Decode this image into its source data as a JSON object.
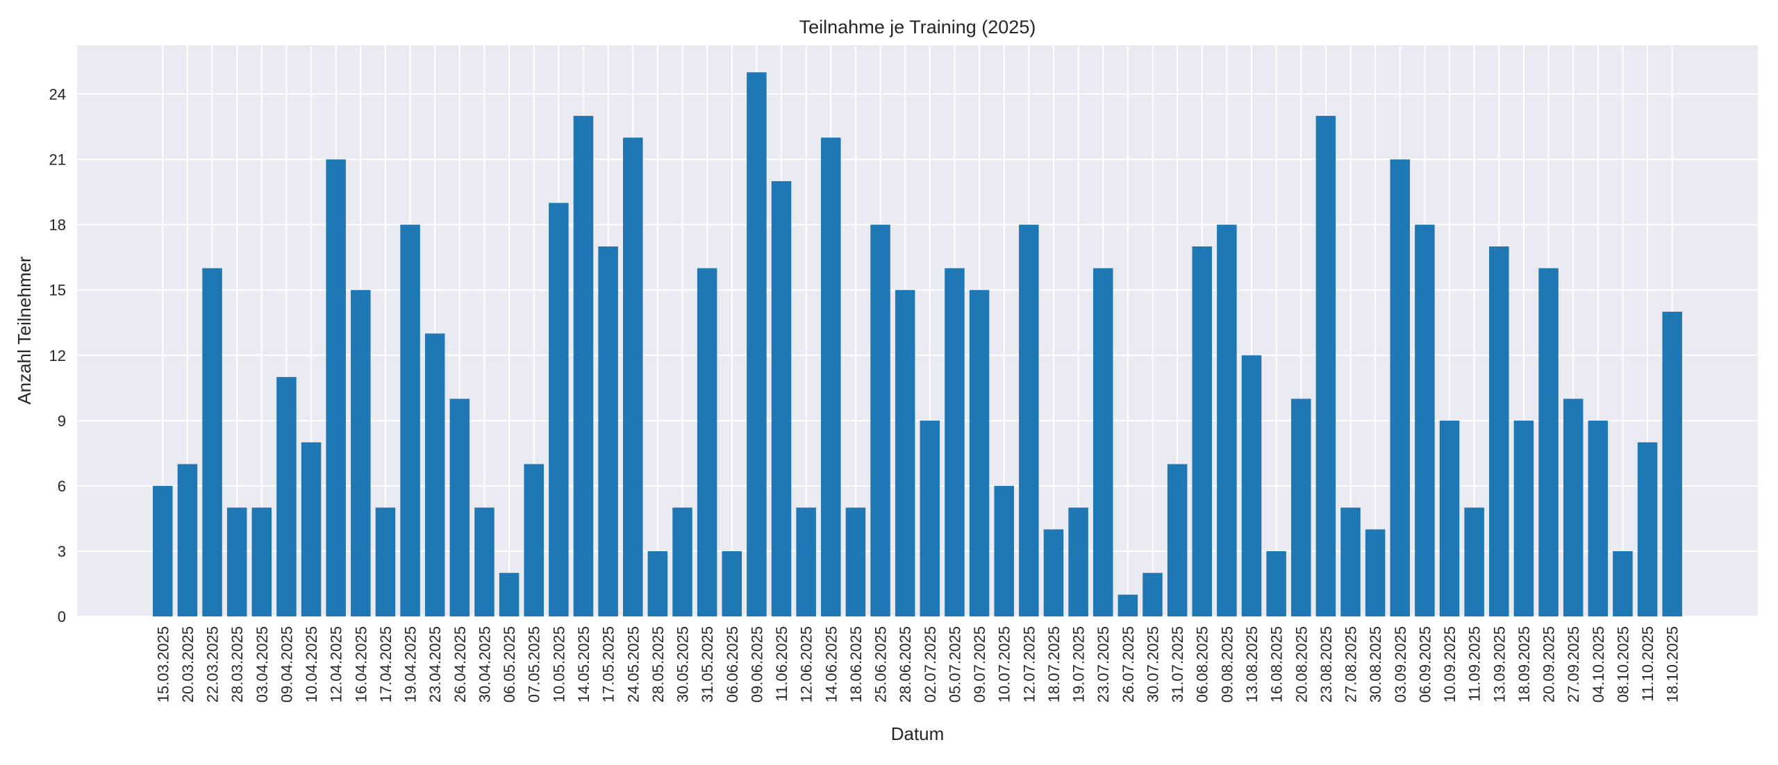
{
  "chart_data": {
    "type": "bar",
    "title": "Teilnahme je Training (2025)",
    "xlabel": "Datum",
    "ylabel": "Anzahl Teilnehmer",
    "ylim": [
      0,
      26.25
    ],
    "yticks": [
      0,
      3,
      6,
      9,
      12,
      15,
      18,
      21,
      24
    ],
    "grid": true,
    "bar_color": "#1f77b4",
    "background_color": "#eaeaf2",
    "categories": [
      "15.03.2025",
      "20.03.2025",
      "22.03.2025",
      "28.03.2025",
      "03.04.2025",
      "09.04.2025",
      "10.04.2025",
      "12.04.2025",
      "16.04.2025",
      "17.04.2025",
      "19.04.2025",
      "23.04.2025",
      "26.04.2025",
      "30.04.2025",
      "06.05.2025",
      "07.05.2025",
      "10.05.2025",
      "14.05.2025",
      "17.05.2025",
      "24.05.2025",
      "28.05.2025",
      "30.05.2025",
      "31.05.2025",
      "06.06.2025",
      "09.06.2025",
      "11.06.2025",
      "12.06.2025",
      "14.06.2025",
      "18.06.2025",
      "25.06.2025",
      "28.06.2025",
      "02.07.2025",
      "05.07.2025",
      "09.07.2025",
      "10.07.2025",
      "12.07.2025",
      "18.07.2025",
      "19.07.2025",
      "23.07.2025",
      "26.07.2025",
      "30.07.2025",
      "31.07.2025",
      "06.08.2025",
      "09.08.2025",
      "13.08.2025",
      "16.08.2025",
      "20.08.2025",
      "23.08.2025",
      "27.08.2025",
      "30.08.2025",
      "03.09.2025",
      "06.09.2025",
      "10.09.2025",
      "11.09.2025",
      "13.09.2025",
      "18.09.2025",
      "20.09.2025",
      "27.09.2025",
      "04.10.2025",
      "08.10.2025",
      "11.10.2025",
      "18.10.2025"
    ],
    "values": [
      6,
      7,
      16,
      5,
      5,
      11,
      8,
      21,
      15,
      5,
      18,
      13,
      10,
      5,
      2,
      7,
      19,
      23,
      17,
      22,
      3,
      5,
      16,
      3,
      25,
      20,
      5,
      22,
      5,
      18,
      15,
      9,
      16,
      15,
      6,
      18,
      4,
      5,
      16,
      1,
      2,
      7,
      17,
      18,
      12,
      3,
      10,
      23,
      5,
      4,
      21,
      18,
      9,
      5,
      17,
      9,
      16,
      10,
      9,
      3,
      8,
      14
    ]
  }
}
